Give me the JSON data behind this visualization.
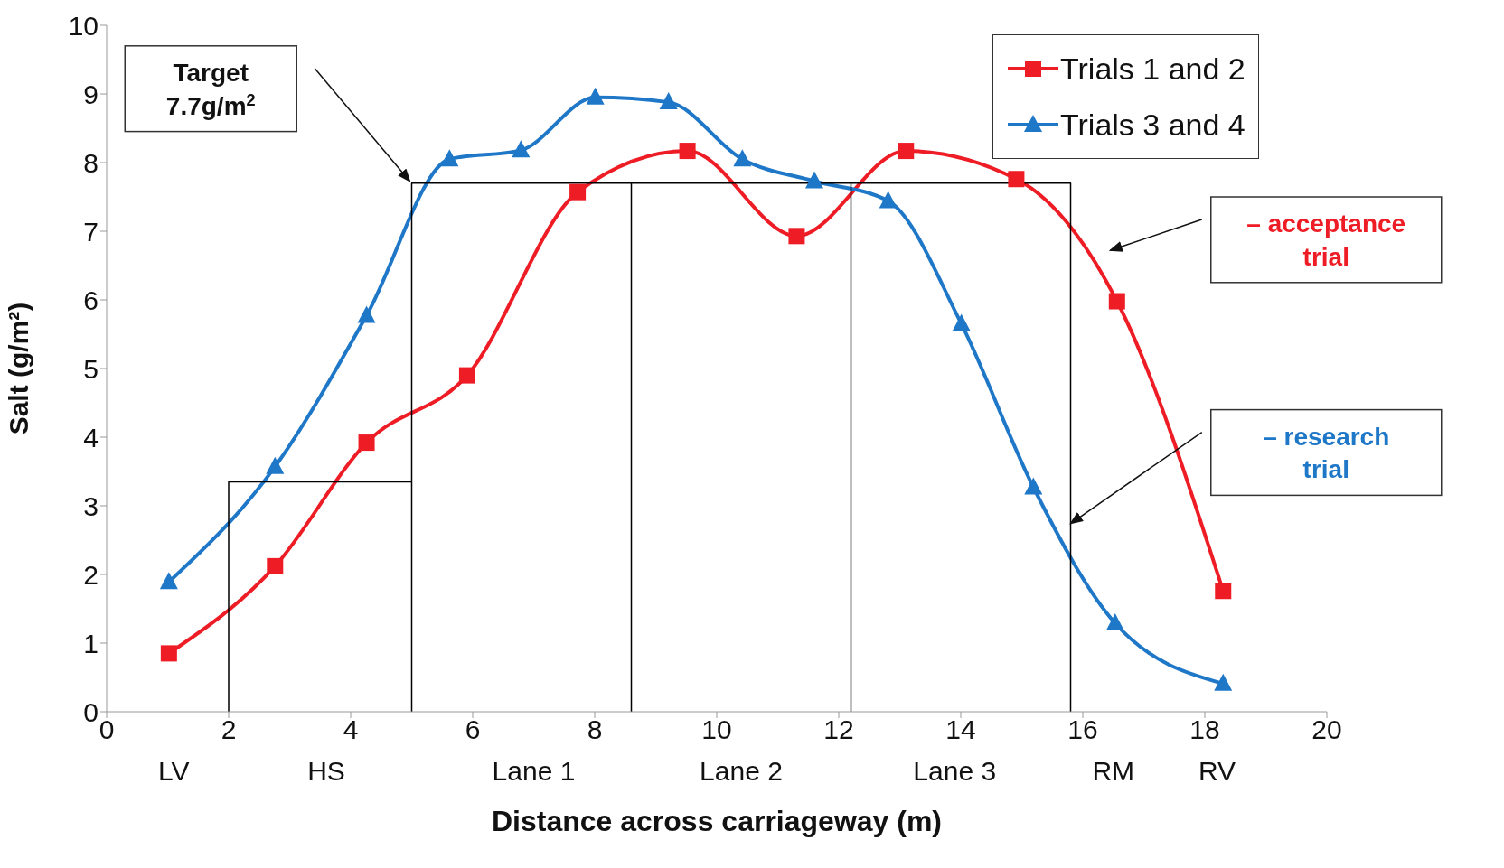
{
  "chart_data": {
    "type": "line",
    "xlabel": "Distance across carriageway (m)",
    "ylabel": "Salt (g/m²)",
    "xlim": [
      0,
      20
    ],
    "xticks": [
      0,
      2,
      4,
      6,
      8,
      10,
      12,
      14,
      16,
      18,
      20
    ],
    "ylim": [
      0,
      10
    ],
    "yticks": [
      0,
      1,
      2,
      3,
      4,
      5,
      6,
      7,
      8,
      9,
      10
    ],
    "grid": false,
    "legend": "top right",
    "line_style": "solid",
    "series": [
      {
        "name": "Trials 1 and 2",
        "color": "#ee1c25",
        "marker": "square",
        "x": [
          1.02,
          2.76,
          4.26,
          5.91,
          7.72,
          9.52,
          11.31,
          13.1,
          14.91,
          16.56,
          18.3
        ],
        "values": [
          0.85,
          2.12,
          3.92,
          4.9,
          7.57,
          8.17,
          6.93,
          8.17,
          7.76,
          5.98,
          1.76
        ]
      },
      {
        "name": "Trials 3 and 4",
        "color": "#1f77c8",
        "marker": "triangle",
        "x": [
          1.02,
          2.76,
          4.26,
          5.62,
          6.79,
          8.01,
          9.21,
          10.42,
          11.6,
          12.81,
          14.01,
          15.19,
          16.53,
          18.3
        ],
        "values": [
          1.89,
          3.57,
          5.77,
          8.05,
          8.18,
          8.95,
          8.88,
          8.05,
          7.73,
          7.44,
          5.65,
          3.27,
          1.29,
          0.41
        ]
      },
      {
        "type": "step",
        "color": "#000000",
        "marker": "none",
        "x": [
          2,
          2,
          5,
          5,
          5,
          8.6,
          8.6,
          8.6,
          12.2,
          12.2,
          12.2,
          15.8,
          15.8
        ],
        "values": [
          0,
          3.35,
          3.35,
          0,
          7.7,
          7.7,
          0,
          7.7,
          7.7,
          0,
          7.7,
          7.7,
          0
        ]
      }
    ],
    "annotations": [
      "Target 7.7g/m$^{2}$",
      "– acceptance trial",
      "– research trial",
      "LV",
      "HS",
      "Lane 1",
      "Lane 2",
      "Lane 3",
      "RM",
      "RV"
    ]
  }
}
